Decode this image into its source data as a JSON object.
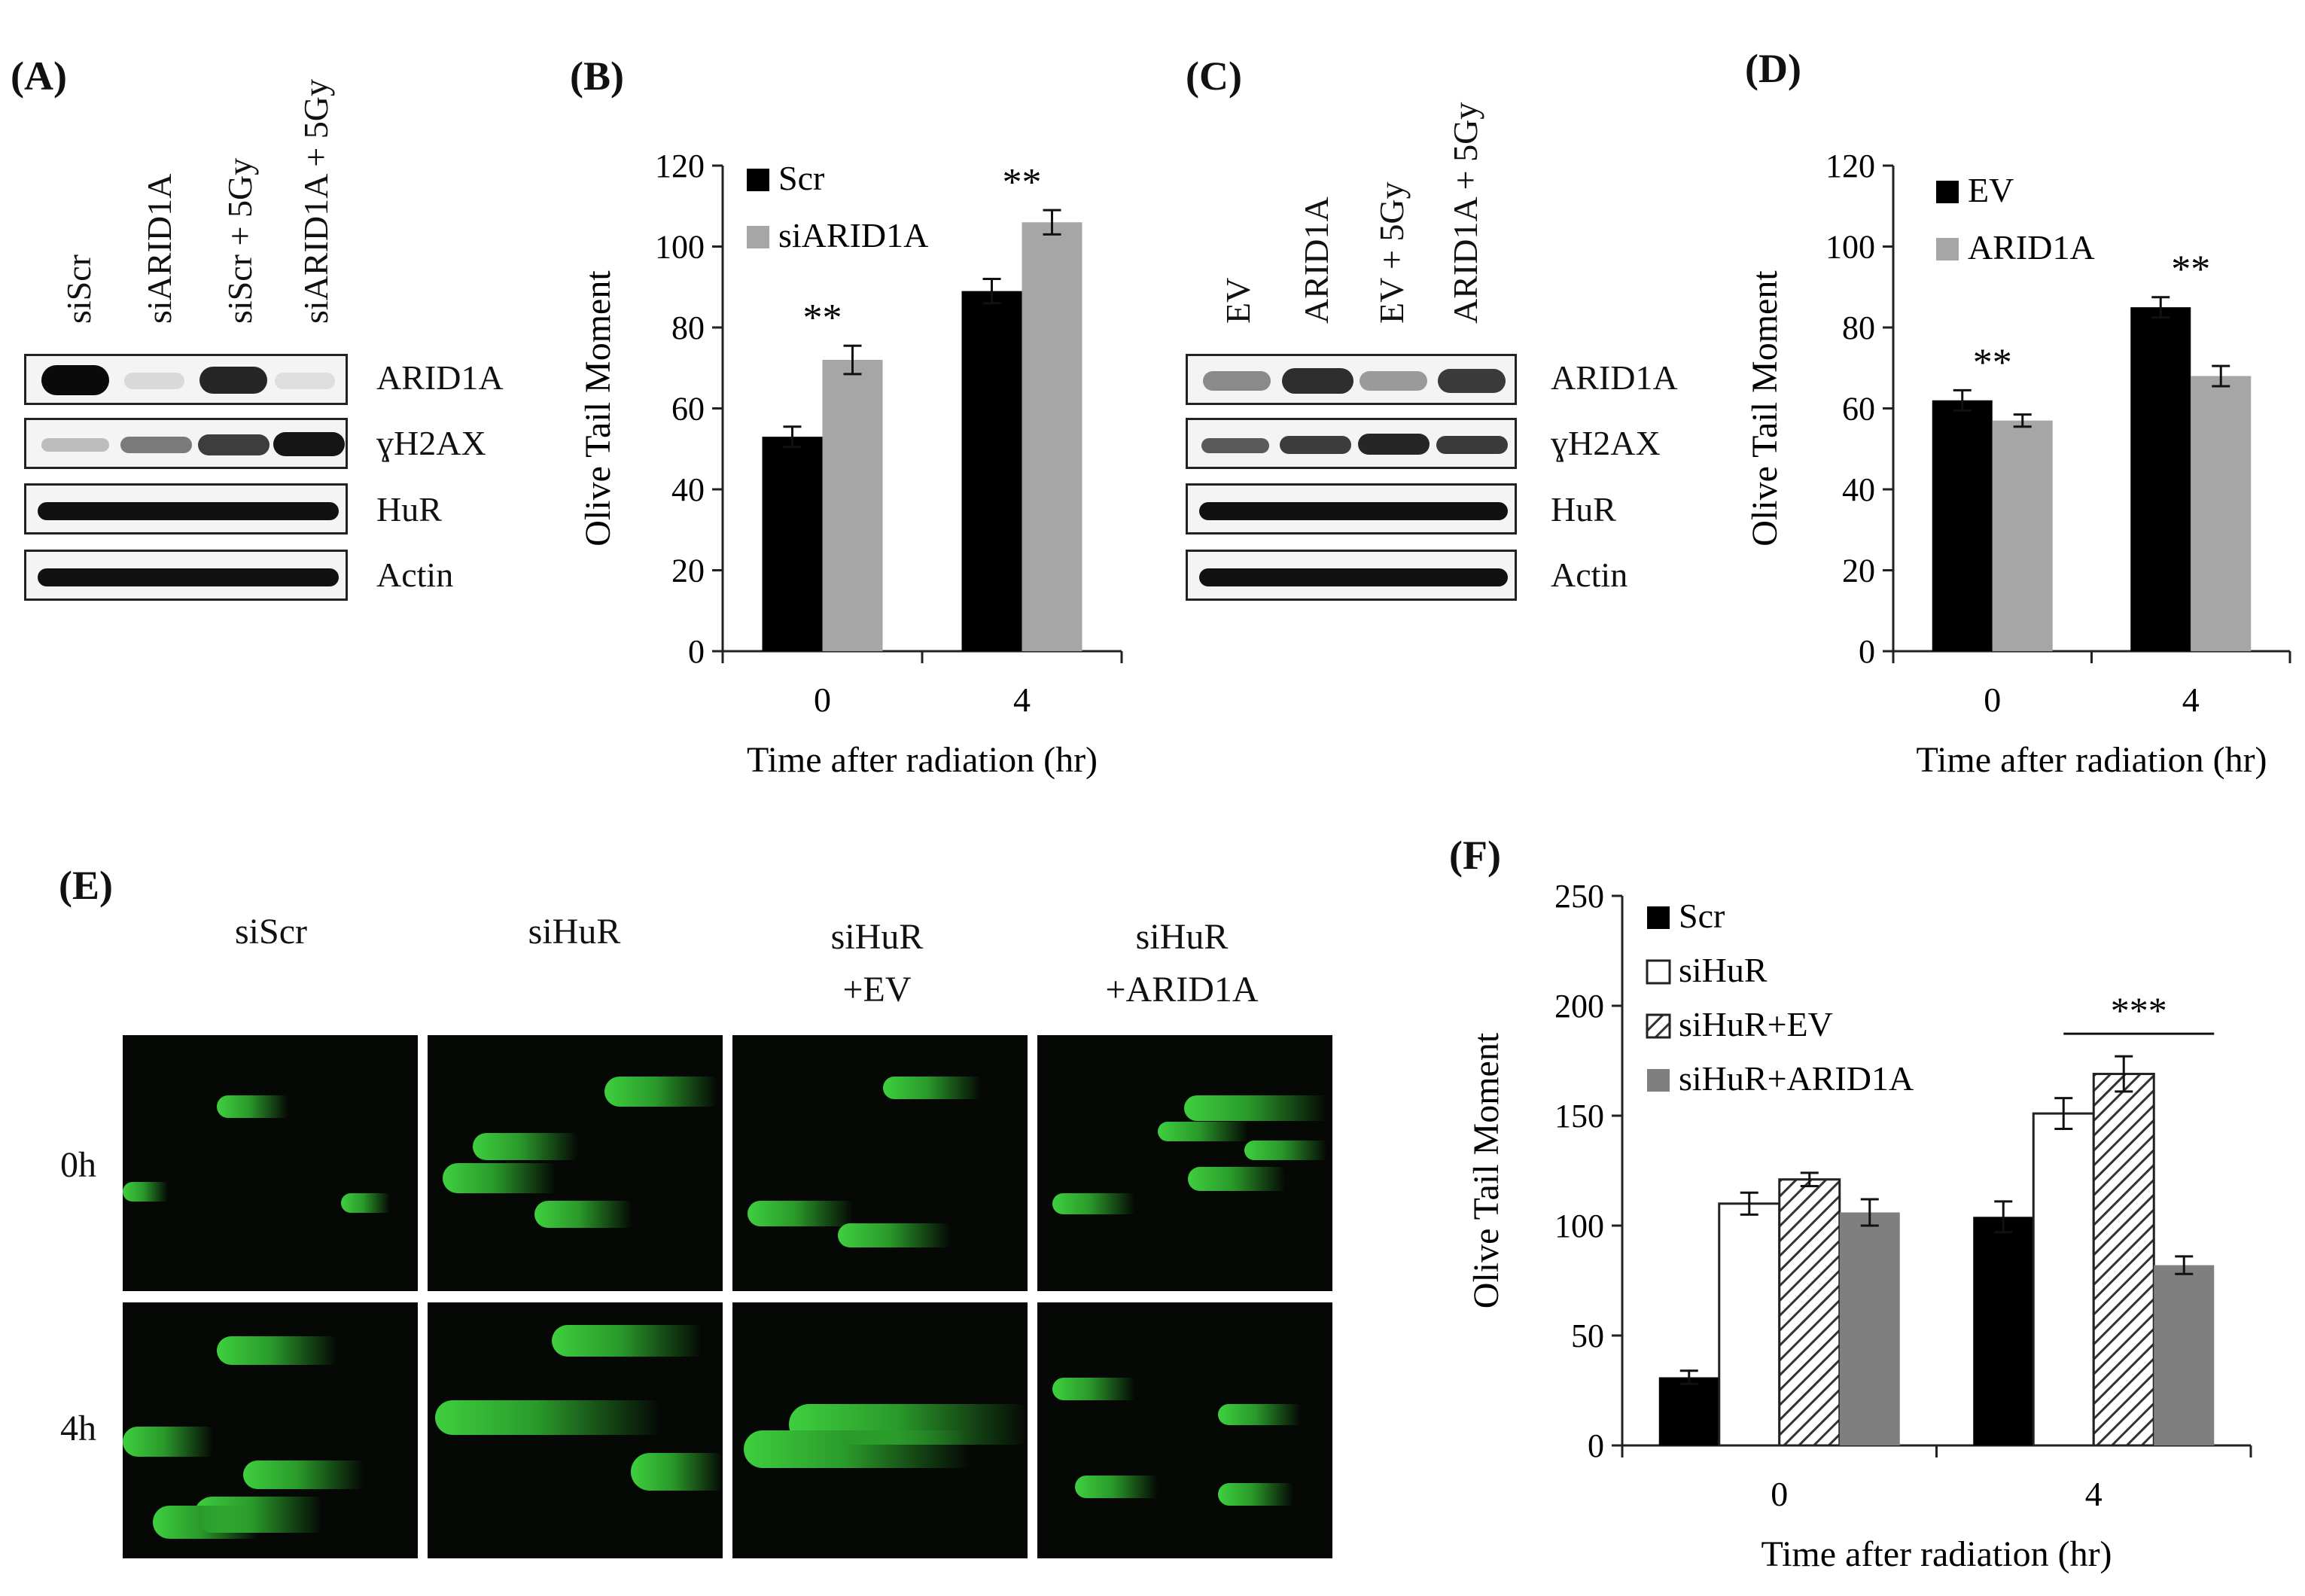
{
  "panels": {
    "A": {
      "label": "(A)",
      "lanes": [
        "siScr",
        "siARID1A",
        "siScr + 5Gy",
        "siARID1A + 5Gy"
      ],
      "blots": [
        "ARID1A",
        "ɣH2AX",
        "HuR",
        "Actin"
      ]
    },
    "C": {
      "label": "(C)",
      "lanes": [
        "EV",
        "ARID1A",
        "EV + 5Gy",
        "ARID1A + 5Gy"
      ],
      "blots": [
        "ARID1A",
        "ɣH2AX",
        "HuR",
        "Actin"
      ]
    },
    "E": {
      "label": "(E)",
      "columns": [
        "siScr",
        "siHuR",
        "siHuR\n+EV",
        "siHuR\n+ARID1A"
      ],
      "rows": [
        "0h",
        "4h"
      ]
    },
    "B": {
      "label": "(B)"
    },
    "D": {
      "label": "(D)"
    },
    "F": {
      "label": "(F)"
    }
  },
  "chart_data": [
    {
      "panel": "B",
      "type": "bar",
      "categories": [
        "0",
        "4"
      ],
      "series": [
        {
          "name": "Scr",
          "values": [
            53,
            89
          ],
          "errors": [
            2.5,
            3
          ],
          "color": "#000000"
        },
        {
          "name": "siARID1A",
          "values": [
            72,
            106
          ],
          "errors": [
            3.5,
            3
          ],
          "color": "#a6a6a6"
        }
      ],
      "significance": [
        "**",
        "**"
      ],
      "xlabel": "Time after radiation (hr)",
      "ylabel": "Olive Tail Moment",
      "ylim": [
        0,
        120
      ],
      "yticks": [
        0,
        20,
        40,
        60,
        80,
        100,
        120
      ],
      "legend": "top-left"
    },
    {
      "panel": "D",
      "type": "bar",
      "categories": [
        "0",
        "4"
      ],
      "series": [
        {
          "name": "EV",
          "values": [
            62,
            85
          ],
          "errors": [
            2.5,
            2.5
          ],
          "color": "#000000"
        },
        {
          "name": "ARID1A",
          "values": [
            57,
            68
          ],
          "errors": [
            1.5,
            2.5
          ],
          "color": "#a6a6a6"
        }
      ],
      "significance": [
        "**",
        "**"
      ],
      "xlabel": "Time after radiation (hr)",
      "ylabel": "Olive Tail Moment",
      "ylim": [
        0,
        120
      ],
      "yticks": [
        0,
        20,
        40,
        60,
        80,
        100,
        120
      ],
      "legend": "top-left"
    },
    {
      "panel": "F",
      "type": "bar",
      "categories": [
        "0",
        "4"
      ],
      "series": [
        {
          "name": "Scr",
          "values": [
            31,
            104
          ],
          "errors": [
            3,
            7
          ],
          "color": "#000000"
        },
        {
          "name": "siHuR",
          "values": [
            110,
            151
          ],
          "errors": [
            5,
            7
          ],
          "color": "#ffffff"
        },
        {
          "name": "siHuR+EV",
          "values": [
            121,
            169
          ],
          "errors": [
            3,
            8
          ],
          "color": "hatch"
        },
        {
          "name": "siHuR+ARID1A",
          "values": [
            106,
            82
          ],
          "errors": [
            6,
            4
          ],
          "color": "#7f7f7f"
        }
      ],
      "significance": [
        "",
        "***"
      ],
      "xlabel": "Time after radiation (hr)",
      "ylabel": "Olive Tail Moment",
      "ylim": [
        0,
        250
      ],
      "yticks": [
        0,
        50,
        100,
        150,
        200,
        250
      ],
      "legend": "top-left"
    }
  ]
}
